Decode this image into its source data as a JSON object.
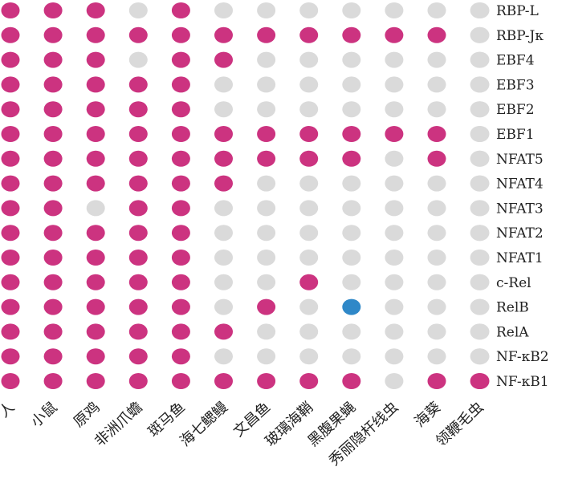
{
  "chart_data": {
    "type": "dot-matrix",
    "rows": [
      "RBP-L",
      "RBP-Jκ",
      "EBF4",
      "EBF3",
      "EBF2",
      "EBF1",
      "NFAT5",
      "NFAT4",
      "NFAT3",
      "NFAT2",
      "NFAT1",
      "c-Rel",
      "RelB",
      "RelA",
      "NF-κB2",
      "NF-κB1"
    ],
    "columns": [
      "人",
      "小鼠",
      "原鸡",
      "非洲爪蟾",
      "斑马鱼",
      "海七鳃鳗",
      "文昌鱼",
      "玻璃海鞘",
      "黑腹果蝇",
      "秀丽隐杆线虫",
      "海葵",
      "领鞭毛虫"
    ],
    "matrix": [
      [
        1,
        1,
        1,
        0,
        1,
        0,
        0,
        0,
        0,
        0,
        0,
        0
      ],
      [
        1,
        1,
        1,
        1,
        1,
        1,
        1,
        1,
        1,
        1,
        1,
        0
      ],
      [
        1,
        1,
        1,
        0,
        1,
        1,
        0,
        0,
        0,
        0,
        0,
        0
      ],
      [
        1,
        1,
        1,
        1,
        1,
        0,
        0,
        0,
        0,
        0,
        0,
        0
      ],
      [
        1,
        1,
        1,
        1,
        1,
        0,
        0,
        0,
        0,
        0,
        0,
        0
      ],
      [
        1,
        1,
        1,
        1,
        1,
        1,
        1,
        1,
        1,
        1,
        1,
        0
      ],
      [
        1,
        1,
        1,
        1,
        1,
        1,
        1,
        1,
        1,
        0,
        1,
        0
      ],
      [
        1,
        1,
        1,
        1,
        1,
        1,
        0,
        0,
        0,
        0,
        0,
        0
      ],
      [
        1,
        1,
        0,
        1,
        1,
        0,
        0,
        0,
        0,
        0,
        0,
        0
      ],
      [
        1,
        1,
        1,
        1,
        1,
        0,
        0,
        0,
        0,
        0,
        0,
        0
      ],
      [
        1,
        1,
        1,
        1,
        1,
        0,
        0,
        0,
        0,
        0,
        0,
        0
      ],
      [
        1,
        1,
        1,
        1,
        1,
        0,
        0,
        1,
        0,
        0,
        0,
        0
      ],
      [
        1,
        1,
        1,
        1,
        1,
        0,
        1,
        0,
        2,
        0,
        0,
        0
      ],
      [
        1,
        1,
        1,
        1,
        1,
        1,
        0,
        0,
        0,
        0,
        0,
        0
      ],
      [
        1,
        1,
        1,
        1,
        1,
        0,
        0,
        0,
        0,
        0,
        0,
        0
      ],
      [
        1,
        1,
        1,
        1,
        1,
        1,
        1,
        1,
        1,
        0,
        1,
        1
      ]
    ],
    "colors": {
      "present": "#cc3380",
      "absent": "#dadada",
      "special": "#2f88c8"
    }
  }
}
